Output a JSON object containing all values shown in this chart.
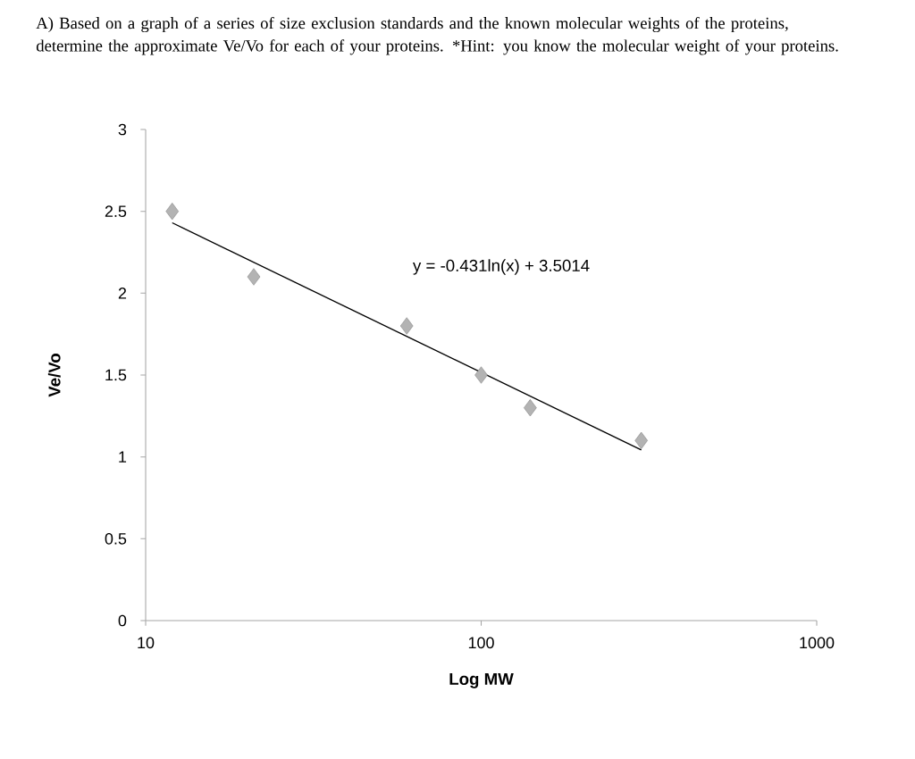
{
  "chart_data": {
    "type": "scatter",
    "title": "A) Based on a graph of a series of size exclusion standards and the known molecular weights of the proteins, determine the approximate Ve/Vo for each of your proteins. *Hint: you know the molecular weight of your proteins.",
    "xlabel": "Log MW",
    "ylabel": "Ve/Vo",
    "x": [
      12,
      21,
      60,
      100,
      140,
      300
    ],
    "series": [
      {
        "color": "#b3b3b3",
        "marker": "diamond",
        "values": [
          2.5,
          2.1,
          1.8,
          1.5,
          1.3,
          1.1
        ]
      },
      {
        "type": "line",
        "color": "#000000",
        "line_style": "solid",
        "marker": "none",
        "x": [
          12,
          300
        ],
        "values": [
          2.43,
          1.043
        ]
      }
    ],
    "annotations": [
      "y = -0.431ln(x) + 3.5014"
    ],
    "log": "x",
    "grid": false,
    "xlim": [
      10,
      1000
    ],
    "ylim": [
      0,
      3
    ],
    "xticks": [
      10,
      100,
      1000
    ],
    "yticks": [
      0,
      0.5,
      1,
      1.5,
      2,
      2.5,
      3
    ]
  }
}
